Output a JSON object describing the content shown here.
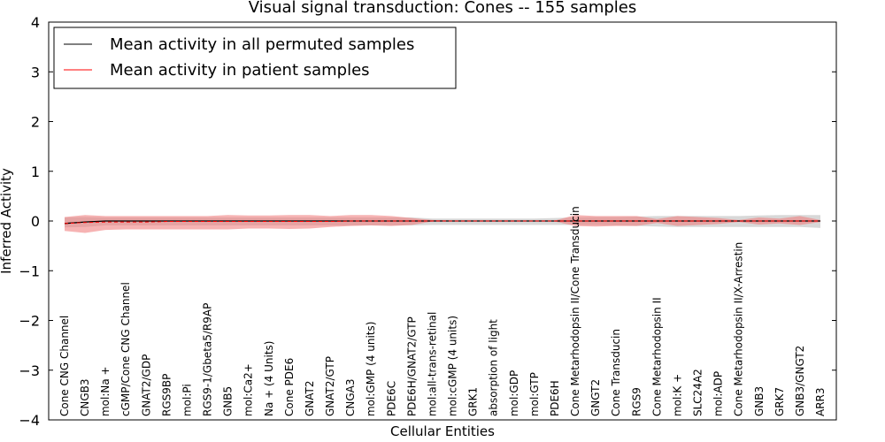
{
  "chart_data": {
    "type": "line",
    "title": "Visual signal transduction: Cones -- 155 samples",
    "xlabel": "Cellular Entities",
    "ylabel": "Inferred Activity",
    "ylim": [
      -4,
      4
    ],
    "yticks": [
      4,
      3,
      2,
      1,
      0,
      -1,
      -2,
      -3,
      -4
    ],
    "ytick_labels": [
      "4",
      "3",
      "2",
      "1",
      "0",
      "−1",
      "−2",
      "−3",
      "−4"
    ],
    "grid": false,
    "legend_position": "top-left",
    "categories": [
      "Cone CNG Channel",
      "CNGB3",
      "mol:Na +",
      "cGMP/Cone CNG Channel",
      "GNAT2/GDP",
      "RGS9BP",
      "mol:Pi",
      "RGS9-1/Gbeta5/R9AP",
      "GNB5",
      "mol:Ca2+",
      "Na + (4 Units)",
      "Cone PDE6",
      "GNAT2",
      "GNAT2/GTP",
      "CNGA3",
      "mol:GMP (4 units)",
      "PDE6C",
      "PDE6H/GNAT2/GTP",
      "mol:all-trans-retinal",
      "mol:cGMP (4 units)",
      "GRK1",
      "absorption of light",
      "mol:GDP",
      "mol:GTP",
      "PDE6H",
      "Cone Metarhodopsin II/Cone Transducin",
      "GNGT2",
      "Cone Transducin",
      "RGS9",
      "Cone Metarhodopsin II",
      "mol:K +",
      "SLC24A2",
      "mol:ADP",
      "Cone Metarhodopsin II/X-Arrestin",
      "GNB3",
      "GRK7",
      "GNB3/GNGT2",
      "ARR3"
    ],
    "series": [
      {
        "name": "Mean activity in all permuted samples",
        "color": "#000000",
        "values": [
          -0.05,
          -0.02,
          0,
          0,
          0,
          0,
          0,
          0,
          0,
          0,
          0,
          0,
          0,
          0,
          0,
          0,
          0,
          0,
          0,
          0,
          0,
          0,
          0,
          0,
          0,
          0,
          0,
          0,
          0,
          0,
          0,
          0,
          0,
          0,
          0,
          0,
          0,
          0
        ],
        "band_upper": [
          0.07,
          0.08,
          0.07,
          0.07,
          0.07,
          0.07,
          0.07,
          0.07,
          0.07,
          0.07,
          0.07,
          0.07,
          0.07,
          0.07,
          0.07,
          0.07,
          0.07,
          0.07,
          0.05,
          0.05,
          0.05,
          0.05,
          0.05,
          0.05,
          0.06,
          0.07,
          0.08,
          0.08,
          0.09,
          0.1,
          0.1,
          0.1,
          0.1,
          0.1,
          0.11,
          0.12,
          0.12,
          0.12
        ],
        "band_lower": [
          -0.13,
          -0.12,
          -0.09,
          -0.09,
          -0.09,
          -0.09,
          -0.09,
          -0.09,
          -0.09,
          -0.09,
          -0.09,
          -0.09,
          -0.09,
          -0.09,
          -0.09,
          -0.09,
          -0.09,
          -0.09,
          -0.08,
          -0.08,
          -0.08,
          -0.08,
          -0.08,
          -0.08,
          -0.08,
          -0.08,
          -0.08,
          -0.09,
          -0.1,
          -0.11,
          -0.12,
          -0.12,
          -0.12,
          -0.12,
          -0.12,
          -0.12,
          -0.12,
          -0.14
        ]
      },
      {
        "name": "Mean activity in patient samples",
        "color": "#ff0000",
        "values": [
          -0.05,
          -0.03,
          -0.02,
          -0.02,
          -0.02,
          -0.01,
          -0.01,
          -0.01,
          -0.01,
          -0.01,
          -0.01,
          -0.01,
          -0.01,
          -0.01,
          0,
          0,
          0,
          0,
          0,
          0,
          0,
          0,
          0,
          0,
          0,
          0,
          0,
          0,
          0,
          0,
          0,
          0,
          0,
          0,
          0,
          0,
          0,
          0
        ],
        "band_upper": [
          0.08,
          0.12,
          0.1,
          0.1,
          0.1,
          0.1,
          0.1,
          0.1,
          0.12,
          0.11,
          0.11,
          0.12,
          0.12,
          0.1,
          0.12,
          0.12,
          0.1,
          0.06,
          0.02,
          0.01,
          0.01,
          0.01,
          0.01,
          0.01,
          0.01,
          0.12,
          0.1,
          0.1,
          0.1,
          0.04,
          0.1,
          0.08,
          0.06,
          0.02,
          0.07,
          0.05,
          0.1,
          0.02
        ],
        "band_lower": [
          -0.2,
          -0.24,
          -0.18,
          -0.17,
          -0.17,
          -0.17,
          -0.17,
          -0.17,
          -0.17,
          -0.15,
          -0.15,
          -0.16,
          -0.15,
          -0.12,
          -0.1,
          -0.09,
          -0.1,
          -0.08,
          -0.01,
          -0.01,
          -0.01,
          -0.01,
          -0.01,
          -0.01,
          -0.01,
          -0.1,
          -0.11,
          -0.1,
          -0.1,
          -0.04,
          -0.1,
          -0.08,
          -0.06,
          -0.02,
          -0.07,
          -0.05,
          -0.08,
          -0.02
        ]
      }
    ]
  }
}
